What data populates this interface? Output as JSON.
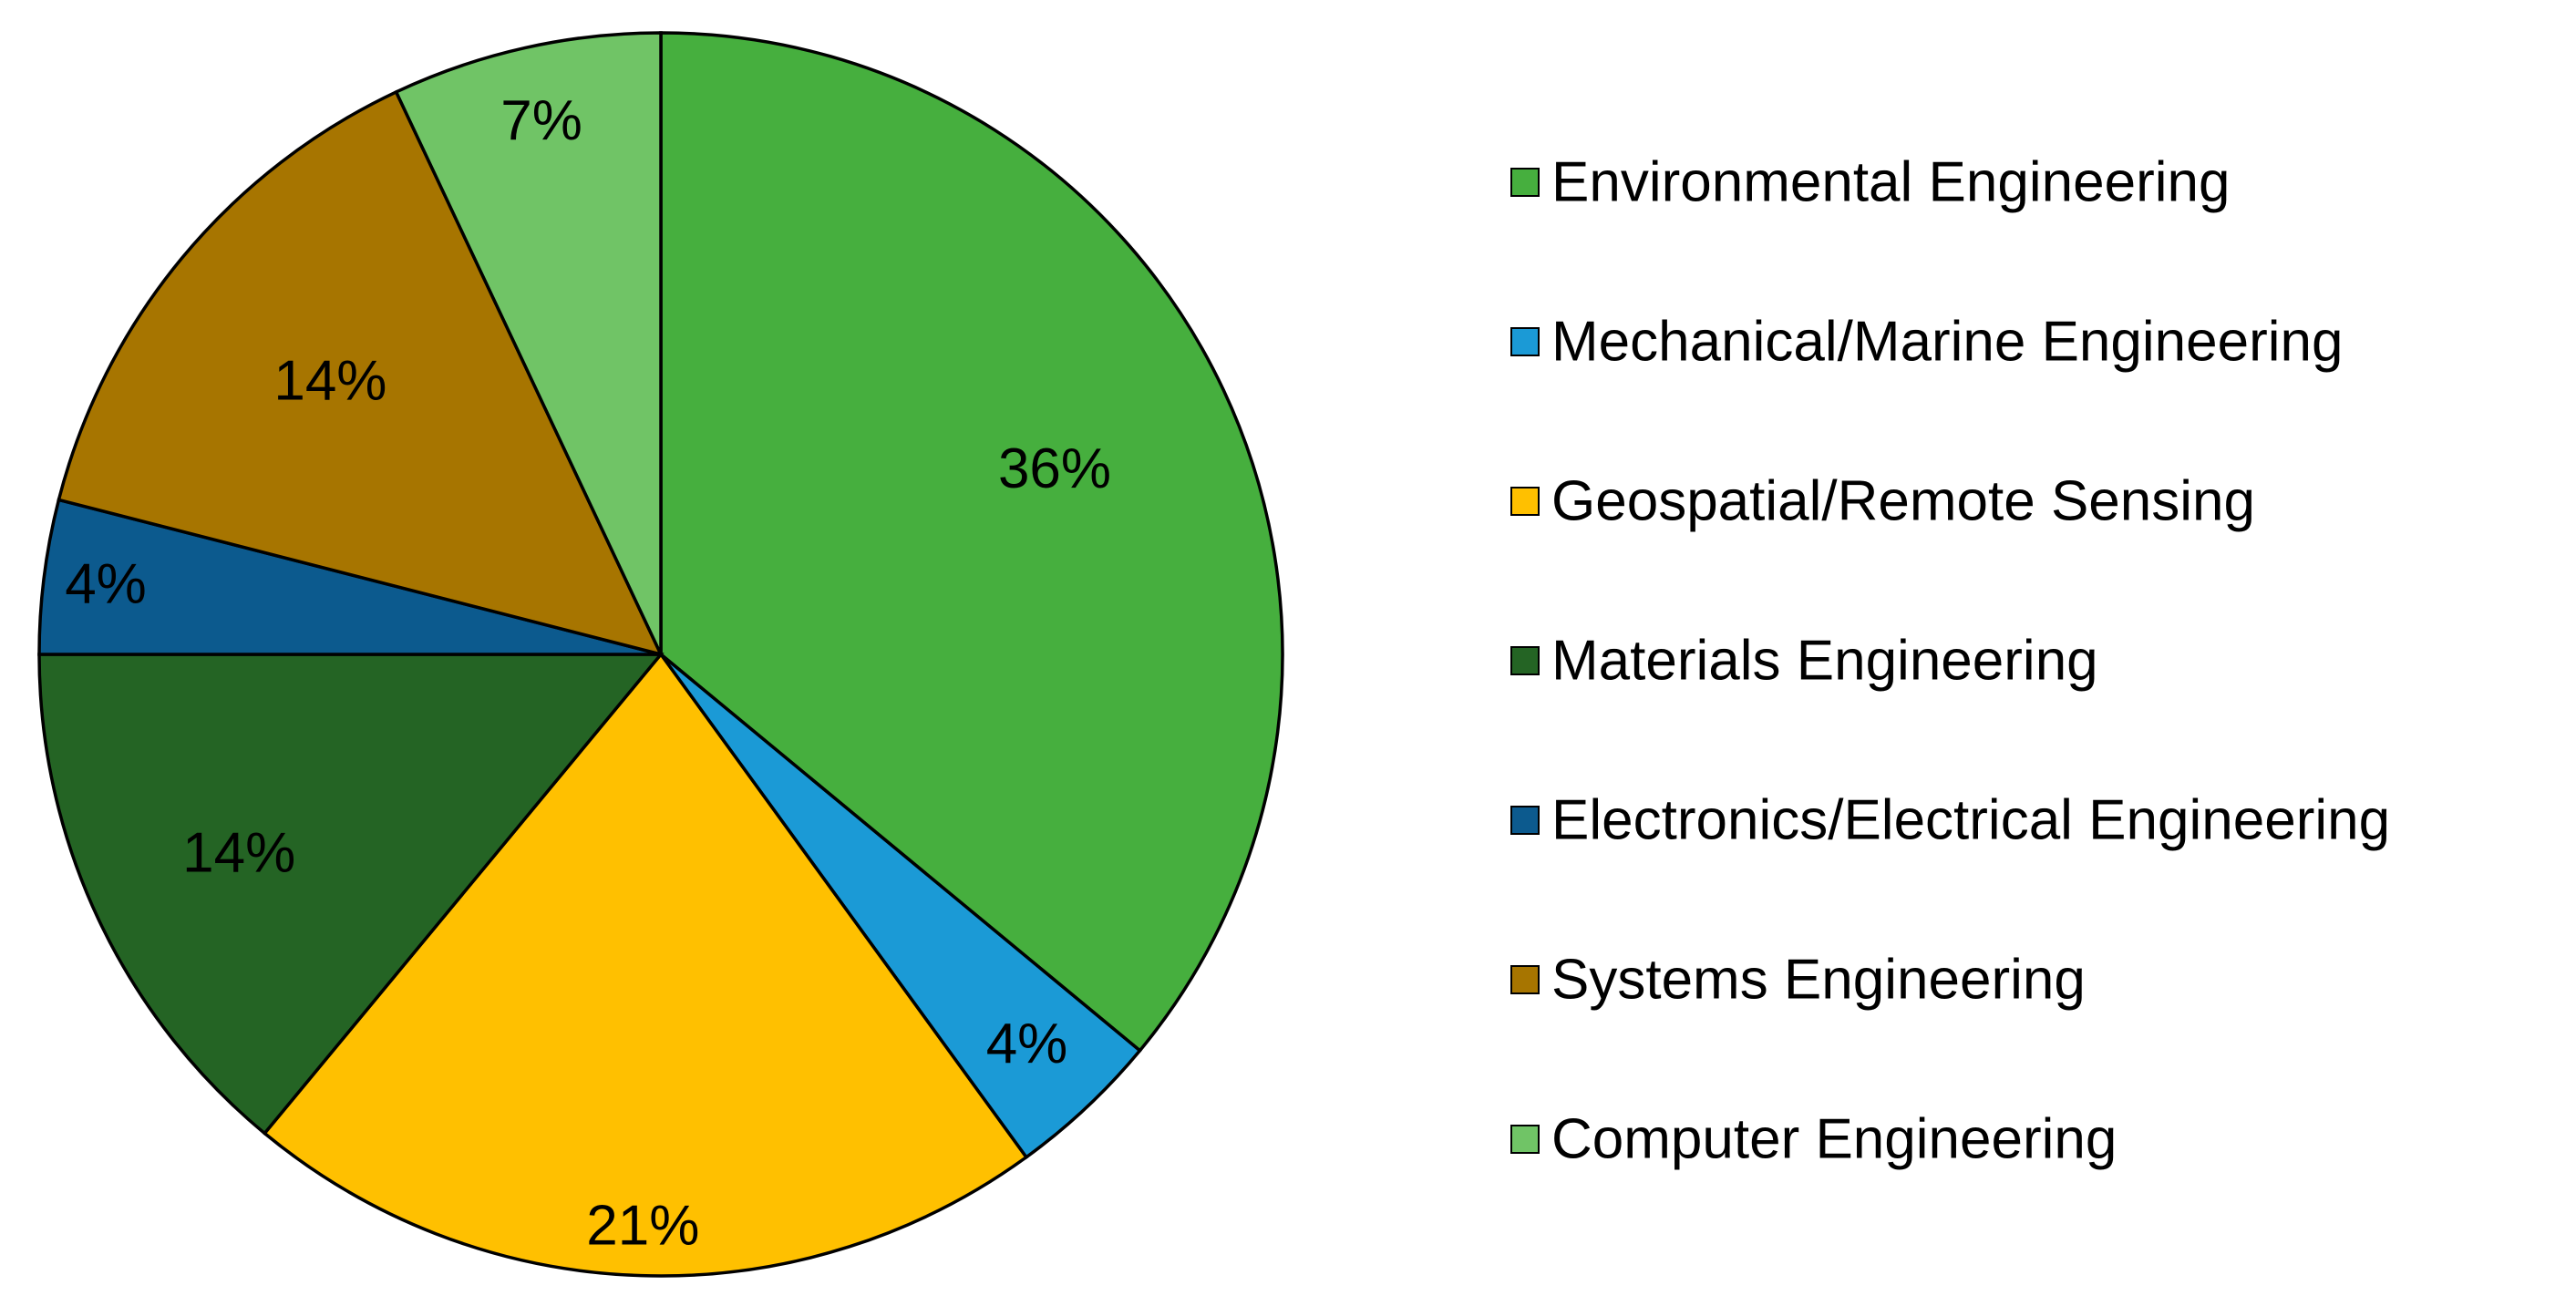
{
  "chart_data": {
    "type": "pie",
    "title": "",
    "legend_position": "right",
    "slices": [
      {
        "label": "Environmental Engineering",
        "value": 36,
        "value_label": "36%",
        "color": "#46AF3E"
      },
      {
        "label": "Mechanical/Marine Engineering",
        "value": 4,
        "value_label": "4%",
        "color": "#1B9AD6"
      },
      {
        "label": "Geospatial/Remote Sensing",
        "value": 21,
        "value_label": "21%",
        "color": "#FFC000"
      },
      {
        "label": "Materials Engineering",
        "value": 14,
        "value_label": "14%",
        "color": "#246424"
      },
      {
        "label": "Electronics/Electrical Engineering",
        "value": 4,
        "value_label": "4%",
        "color": "#0C5A8E"
      },
      {
        "label": "Systems Engineering",
        "value": 14,
        "value_label": "14%",
        "color": "#A77500"
      },
      {
        "label": "Computer Engineering",
        "value": 7,
        "value_label": "7%",
        "color": "#70C466"
      }
    ]
  }
}
